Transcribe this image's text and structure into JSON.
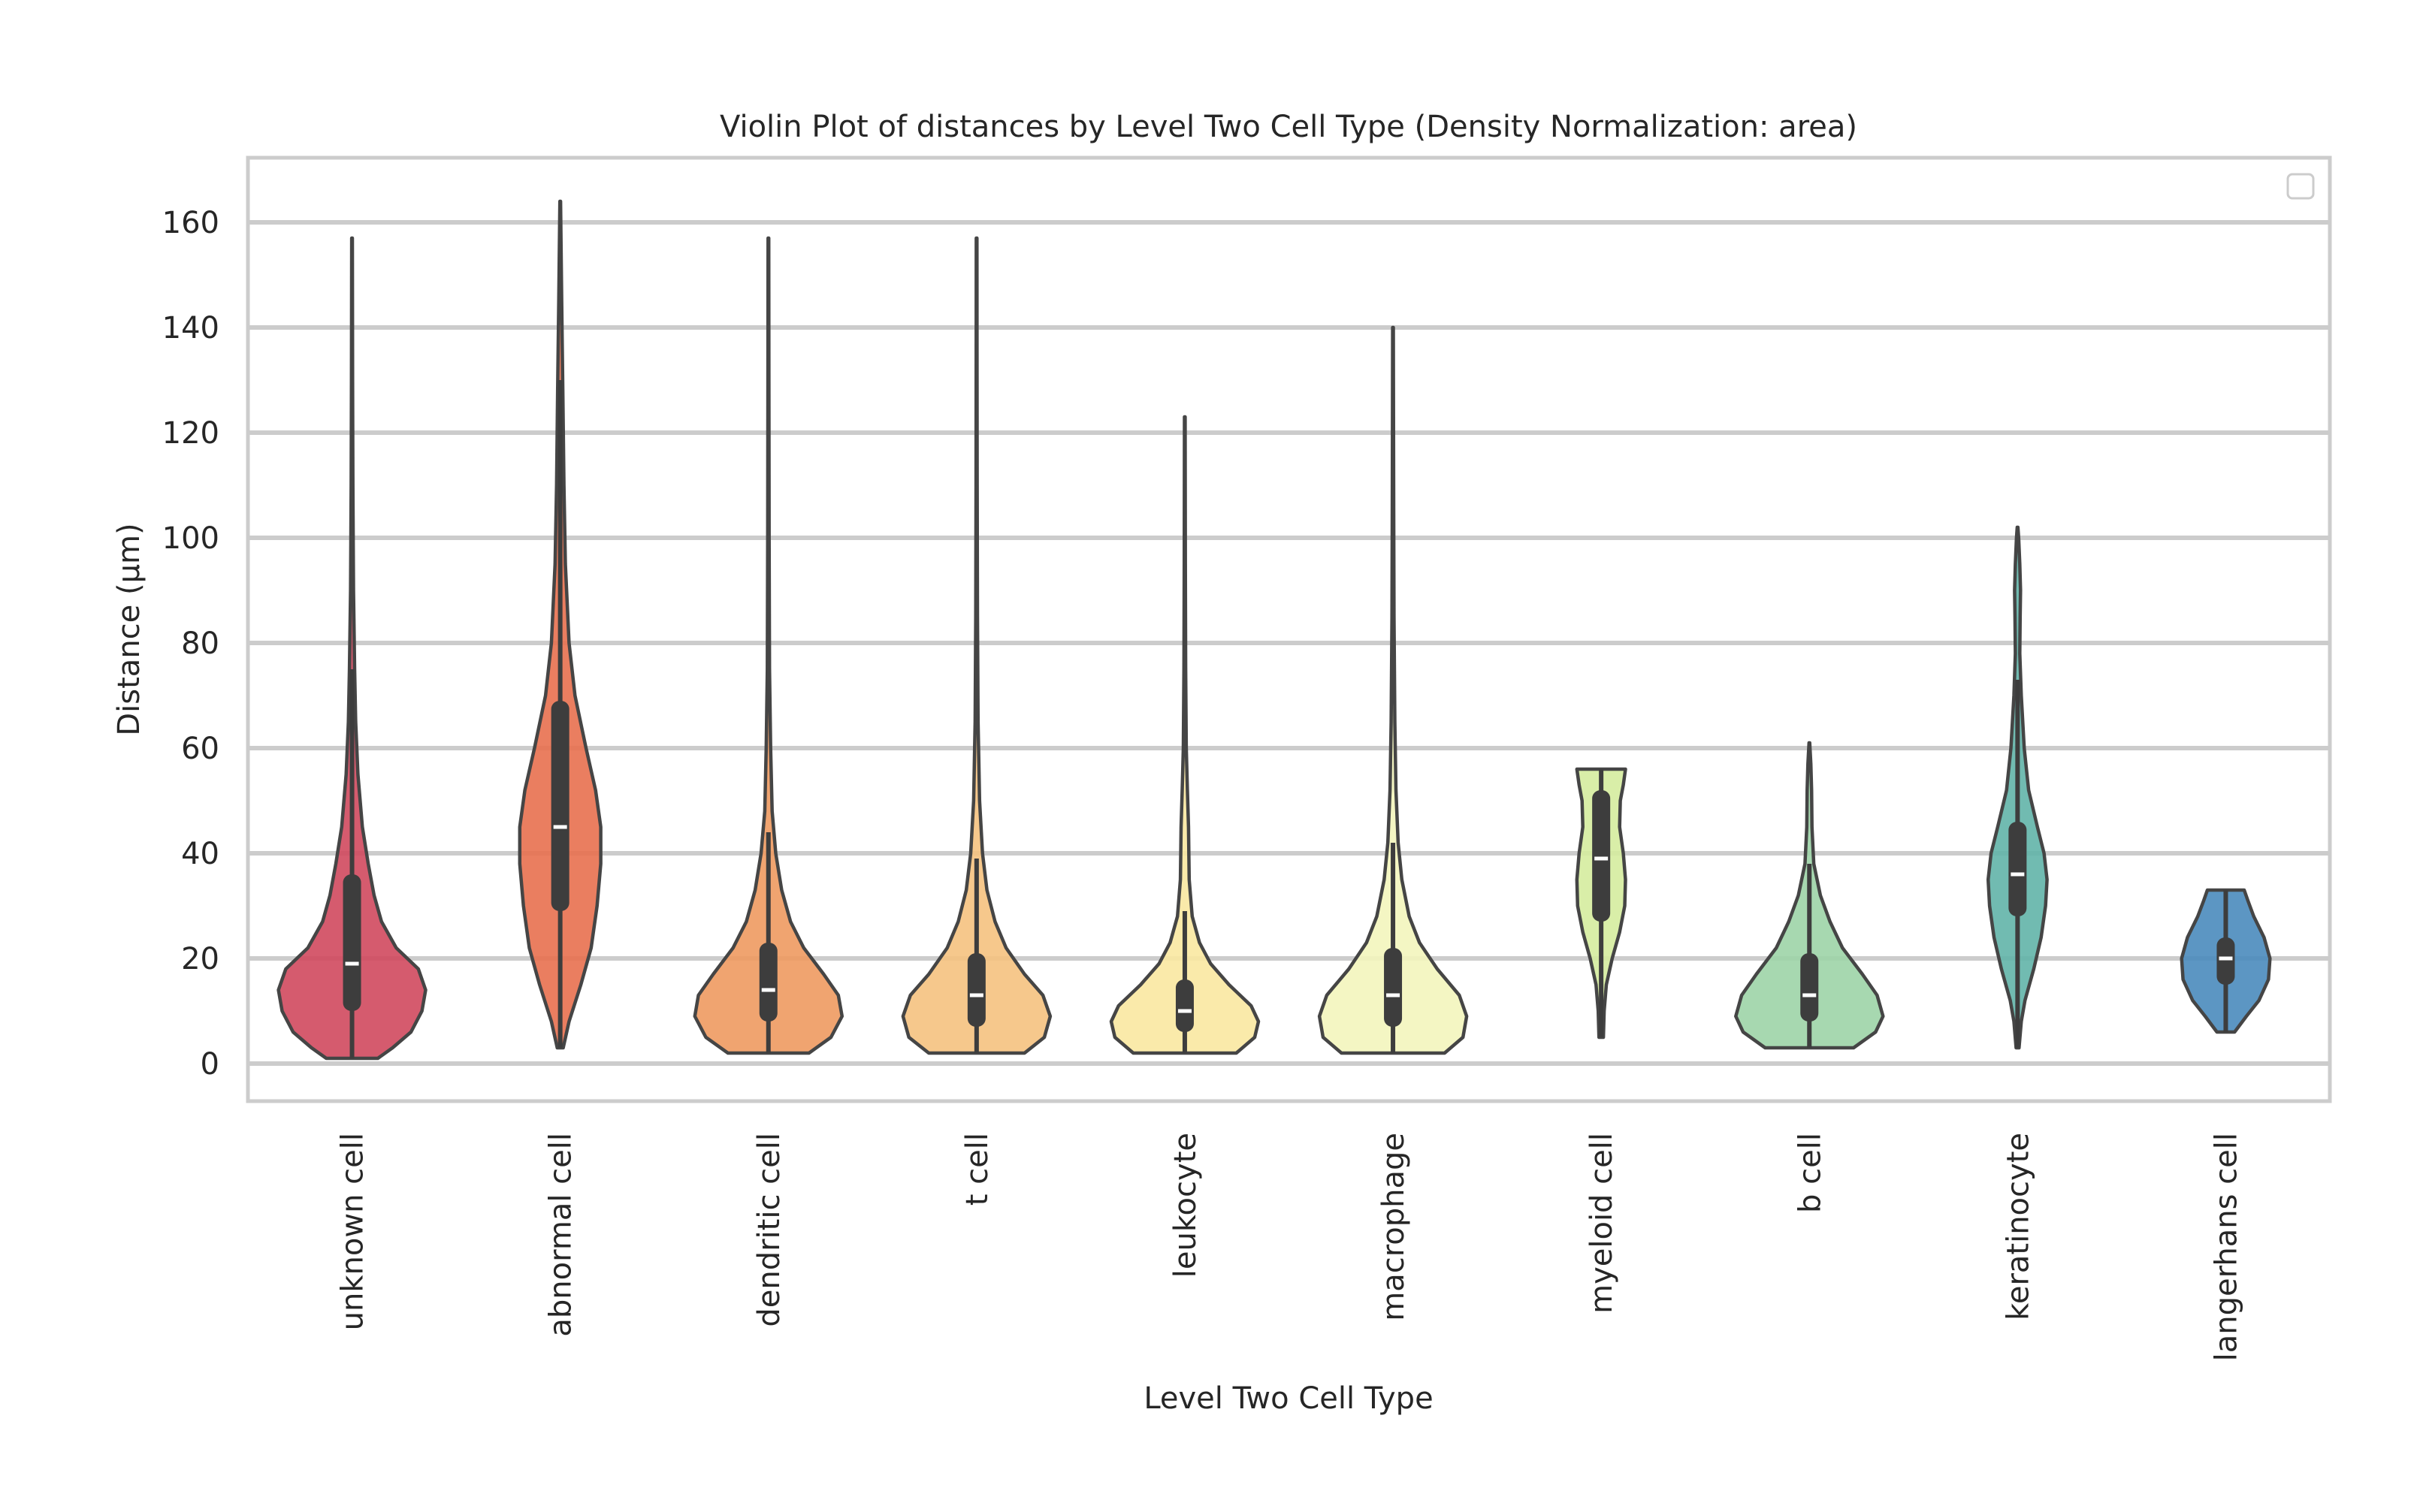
{
  "chart_data": {
    "type": "violin",
    "title": "Violin Plot of distances by Level Two Cell Type (Density Normalization: area)",
    "xlabel": "Level Two Cell Type",
    "ylabel": "Distance (µm)",
    "ylim": [
      -7,
      172
    ],
    "yticks": [
      0,
      20,
      40,
      60,
      80,
      100,
      120,
      140,
      160
    ],
    "grid": true,
    "legend": "top-right (empty)",
    "categories": [
      "unknown cell",
      "abnormal cell",
      "dendritic cell",
      "t cell",
      "leukocyte",
      "macrophage",
      "myeloid cell",
      "b cell",
      "keratinocyte",
      "langerhans cell"
    ],
    "series": [
      {
        "name": "unknown cell",
        "color": "#d0495e",
        "min": 1,
        "max": 157,
        "q1": 10,
        "median": 19,
        "q3": 36,
        "whisker_low": 1,
        "whisker_high": 75,
        "profile": [
          [
            1,
            0.35
          ],
          [
            3,
            0.55
          ],
          [
            6,
            0.8
          ],
          [
            10,
            0.95
          ],
          [
            14,
            1.0
          ],
          [
            18,
            0.9
          ],
          [
            22,
            0.6
          ],
          [
            27,
            0.4
          ],
          [
            32,
            0.3
          ],
          [
            38,
            0.22
          ],
          [
            45,
            0.14
          ],
          [
            55,
            0.08
          ],
          [
            65,
            0.05
          ],
          [
            75,
            0.035
          ],
          [
            90,
            0.02
          ],
          [
            110,
            0.012
          ],
          [
            130,
            0.008
          ],
          [
            157,
            0.005
          ]
        ]
      },
      {
        "name": "abnormal cell",
        "color": "#e8704f",
        "min": 3,
        "max": 164,
        "q1": 29,
        "median": 45,
        "q3": 69,
        "whisker_low": 3,
        "whisker_high": 130,
        "profile": [
          [
            3,
            0.04
          ],
          [
            8,
            0.12
          ],
          [
            15,
            0.28
          ],
          [
            22,
            0.42
          ],
          [
            30,
            0.5
          ],
          [
            38,
            0.55
          ],
          [
            45,
            0.55
          ],
          [
            52,
            0.48
          ],
          [
            60,
            0.35
          ],
          [
            70,
            0.2
          ],
          [
            80,
            0.12
          ],
          [
            95,
            0.07
          ],
          [
            110,
            0.05
          ],
          [
            128,
            0.035
          ],
          [
            145,
            0.02
          ],
          [
            164,
            0.005
          ]
        ]
      },
      {
        "name": "dendritic cell",
        "color": "#ee9a60",
        "min": 2,
        "max": 157,
        "q1": 8,
        "median": 14,
        "q3": 23,
        "whisker_low": 2,
        "whisker_high": 44,
        "profile": [
          [
            2,
            0.55
          ],
          [
            5,
            0.85
          ],
          [
            9,
            1.0
          ],
          [
            13,
            0.95
          ],
          [
            17,
            0.75
          ],
          [
            22,
            0.48
          ],
          [
            27,
            0.3
          ],
          [
            33,
            0.18
          ],
          [
            40,
            0.1
          ],
          [
            48,
            0.05
          ],
          [
            60,
            0.03
          ],
          [
            75,
            0.015
          ],
          [
            100,
            0.01
          ],
          [
            130,
            0.007
          ],
          [
            157,
            0.005
          ]
        ]
      },
      {
        "name": "t cell",
        "color": "#f5c27f",
        "min": 2,
        "max": 157,
        "q1": 7,
        "median": 13,
        "q3": 21,
        "whisker_low": 2,
        "whisker_high": 39,
        "profile": [
          [
            2,
            0.65
          ],
          [
            5,
            0.92
          ],
          [
            9,
            1.0
          ],
          [
            13,
            0.9
          ],
          [
            17,
            0.65
          ],
          [
            22,
            0.4
          ],
          [
            27,
            0.25
          ],
          [
            33,
            0.14
          ],
          [
            40,
            0.08
          ],
          [
            50,
            0.04
          ],
          [
            65,
            0.02
          ],
          [
            85,
            0.012
          ],
          [
            110,
            0.008
          ],
          [
            135,
            0.006
          ],
          [
            157,
            0.005
          ]
        ]
      },
      {
        "name": "leukocyte",
        "color": "#fae8a1",
        "min": 2,
        "max": 123,
        "q1": 6,
        "median": 10,
        "q3": 16,
        "whisker_low": 2,
        "whisker_high": 29,
        "profile": [
          [
            2,
            0.7
          ],
          [
            5,
            0.95
          ],
          [
            8,
            1.0
          ],
          [
            11,
            0.9
          ],
          [
            15,
            0.6
          ],
          [
            19,
            0.35
          ],
          [
            23,
            0.2
          ],
          [
            28,
            0.1
          ],
          [
            35,
            0.06
          ],
          [
            45,
            0.05
          ],
          [
            52,
            0.035
          ],
          [
            60,
            0.02
          ],
          [
            75,
            0.012
          ],
          [
            95,
            0.008
          ],
          [
            123,
            0.005
          ]
        ]
      },
      {
        "name": "macrophage",
        "color": "#f3f5bc",
        "min": 2,
        "max": 140,
        "q1": 7,
        "median": 13,
        "q3": 22,
        "whisker_low": 2,
        "whisker_high": 42,
        "profile": [
          [
            2,
            0.7
          ],
          [
            5,
            0.95
          ],
          [
            9,
            1.0
          ],
          [
            13,
            0.9
          ],
          [
            18,
            0.6
          ],
          [
            23,
            0.36
          ],
          [
            28,
            0.22
          ],
          [
            35,
            0.12
          ],
          [
            42,
            0.07
          ],
          [
            52,
            0.04
          ],
          [
            65,
            0.025
          ],
          [
            85,
            0.014
          ],
          [
            105,
            0.01
          ],
          [
            125,
            0.007
          ],
          [
            140,
            0.005
          ]
        ]
      },
      {
        "name": "myeloid cell",
        "color": "#d5ec9f",
        "min": 5,
        "max": 56,
        "q1": 27,
        "median": 39,
        "q3": 52,
        "whisker_low": 5,
        "whisker_high": 56,
        "profile": [
          [
            5,
            0.03
          ],
          [
            10,
            0.04
          ],
          [
            15,
            0.07
          ],
          [
            20,
            0.15
          ],
          [
            25,
            0.25
          ],
          [
            30,
            0.32
          ],
          [
            35,
            0.33
          ],
          [
            40,
            0.3
          ],
          [
            45,
            0.25
          ],
          [
            50,
            0.26
          ],
          [
            53,
            0.3
          ],
          [
            56,
            0.33
          ]
        ]
      },
      {
        "name": "b cell",
        "color": "#9dd4a7",
        "min": 3,
        "max": 61,
        "q1": 8,
        "median": 13,
        "q3": 21,
        "whisker_low": 3,
        "whisker_high": 38,
        "profile": [
          [
            3,
            0.6
          ],
          [
            6,
            0.9
          ],
          [
            9,
            1.0
          ],
          [
            13,
            0.92
          ],
          [
            17,
            0.72
          ],
          [
            22,
            0.45
          ],
          [
            27,
            0.28
          ],
          [
            32,
            0.15
          ],
          [
            38,
            0.06
          ],
          [
            45,
            0.035
          ],
          [
            52,
            0.03
          ],
          [
            57,
            0.02
          ],
          [
            61,
            0.005
          ]
        ]
      },
      {
        "name": "keratinocyte",
        "color": "#62b4a9",
        "min": 3,
        "max": 102,
        "q1": 28,
        "median": 36,
        "q3": 46,
        "whisker_low": 3,
        "whisker_high": 73,
        "profile": [
          [
            3,
            0.02
          ],
          [
            8,
            0.05
          ],
          [
            12,
            0.1
          ],
          [
            18,
            0.22
          ],
          [
            24,
            0.32
          ],
          [
            30,
            0.38
          ],
          [
            35,
            0.4
          ],
          [
            40,
            0.36
          ],
          [
            45,
            0.27
          ],
          [
            52,
            0.15
          ],
          [
            60,
            0.09
          ],
          [
            70,
            0.05
          ],
          [
            78,
            0.03
          ],
          [
            85,
            0.035
          ],
          [
            90,
            0.04
          ],
          [
            95,
            0.03
          ],
          [
            100,
            0.015
          ],
          [
            102,
            0.005
          ]
        ]
      },
      {
        "name": "langerhans cell",
        "color": "#4a8bbd",
        "min": 6,
        "max": 33,
        "q1": 15,
        "median": 20,
        "q3": 24,
        "whisker_low": 6,
        "whisker_high": 33,
        "profile": [
          [
            6,
            0.12
          ],
          [
            9,
            0.28
          ],
          [
            12,
            0.45
          ],
          [
            16,
            0.58
          ],
          [
            20,
            0.6
          ],
          [
            24,
            0.52
          ],
          [
            28,
            0.38
          ],
          [
            31,
            0.3
          ],
          [
            33,
            0.25
          ]
        ]
      }
    ]
  }
}
